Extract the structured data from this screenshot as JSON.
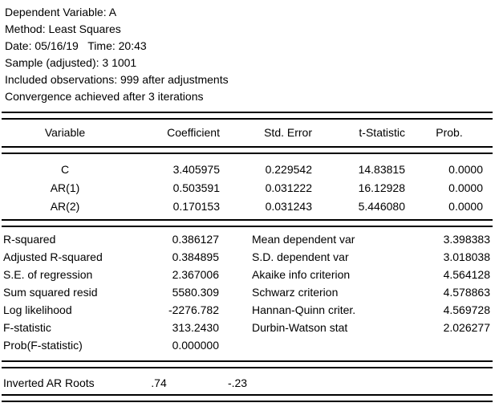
{
  "header": {
    "lines": [
      "Dependent Variable: A",
      "Method: Least Squares",
      "Date: 05/16/19   Time: 20:43",
      "Sample (adjusted): 3 1001",
      "Included observations: 999 after adjustments",
      "Convergence achieved after 3 iterations"
    ]
  },
  "coefficients_table": {
    "columns": {
      "variable": "Variable",
      "coefficient": "Coefficient",
      "std_error": "Std. Error",
      "t_statistic": "t-Statistic",
      "prob": "Prob."
    },
    "rows": [
      {
        "variable": "C",
        "coefficient": "3.405975",
        "std_error": "0.229542",
        "t_statistic": "14.83815",
        "prob": "0.0000"
      },
      {
        "variable": "AR(1)",
        "coefficient": "0.503591",
        "std_error": "0.031222",
        "t_statistic": "16.12928",
        "prob": "0.0000"
      },
      {
        "variable": "AR(2)",
        "coefficient": "0.170153",
        "std_error": "0.031243",
        "t_statistic": "5.446080",
        "prob": "0.0000"
      }
    ]
  },
  "statistics": {
    "rows": [
      {
        "label_left": "R-squared",
        "value_left": "0.386127",
        "label_right": "Mean dependent var",
        "value_right": "3.398383"
      },
      {
        "label_left": "Adjusted R-squared",
        "value_left": "0.384895",
        "label_right": "S.D. dependent var",
        "value_right": "3.018038"
      },
      {
        "label_left": "S.E. of regression",
        "value_left": "2.367006",
        "label_right": "Akaike info criterion",
        "value_right": "4.564128"
      },
      {
        "label_left": "Sum squared resid",
        "value_left": "5580.309",
        "label_right": "Schwarz criterion",
        "value_right": "4.578863"
      },
      {
        "label_left": "Log likelihood",
        "value_left": "-2276.782",
        "label_right": "Hannan-Quinn criter.",
        "value_right": "4.569728"
      },
      {
        "label_left": "F-statistic",
        "value_left": "313.2430",
        "label_right": "Durbin-Watson stat",
        "value_right": "2.026277"
      },
      {
        "label_left": "Prob(F-statistic)",
        "value_left": "0.000000",
        "label_right": "",
        "value_right": ""
      }
    ]
  },
  "inverted_ar_roots": {
    "label": "Inverted AR Roots",
    "values": [
      ".74",
      "-.23"
    ]
  }
}
